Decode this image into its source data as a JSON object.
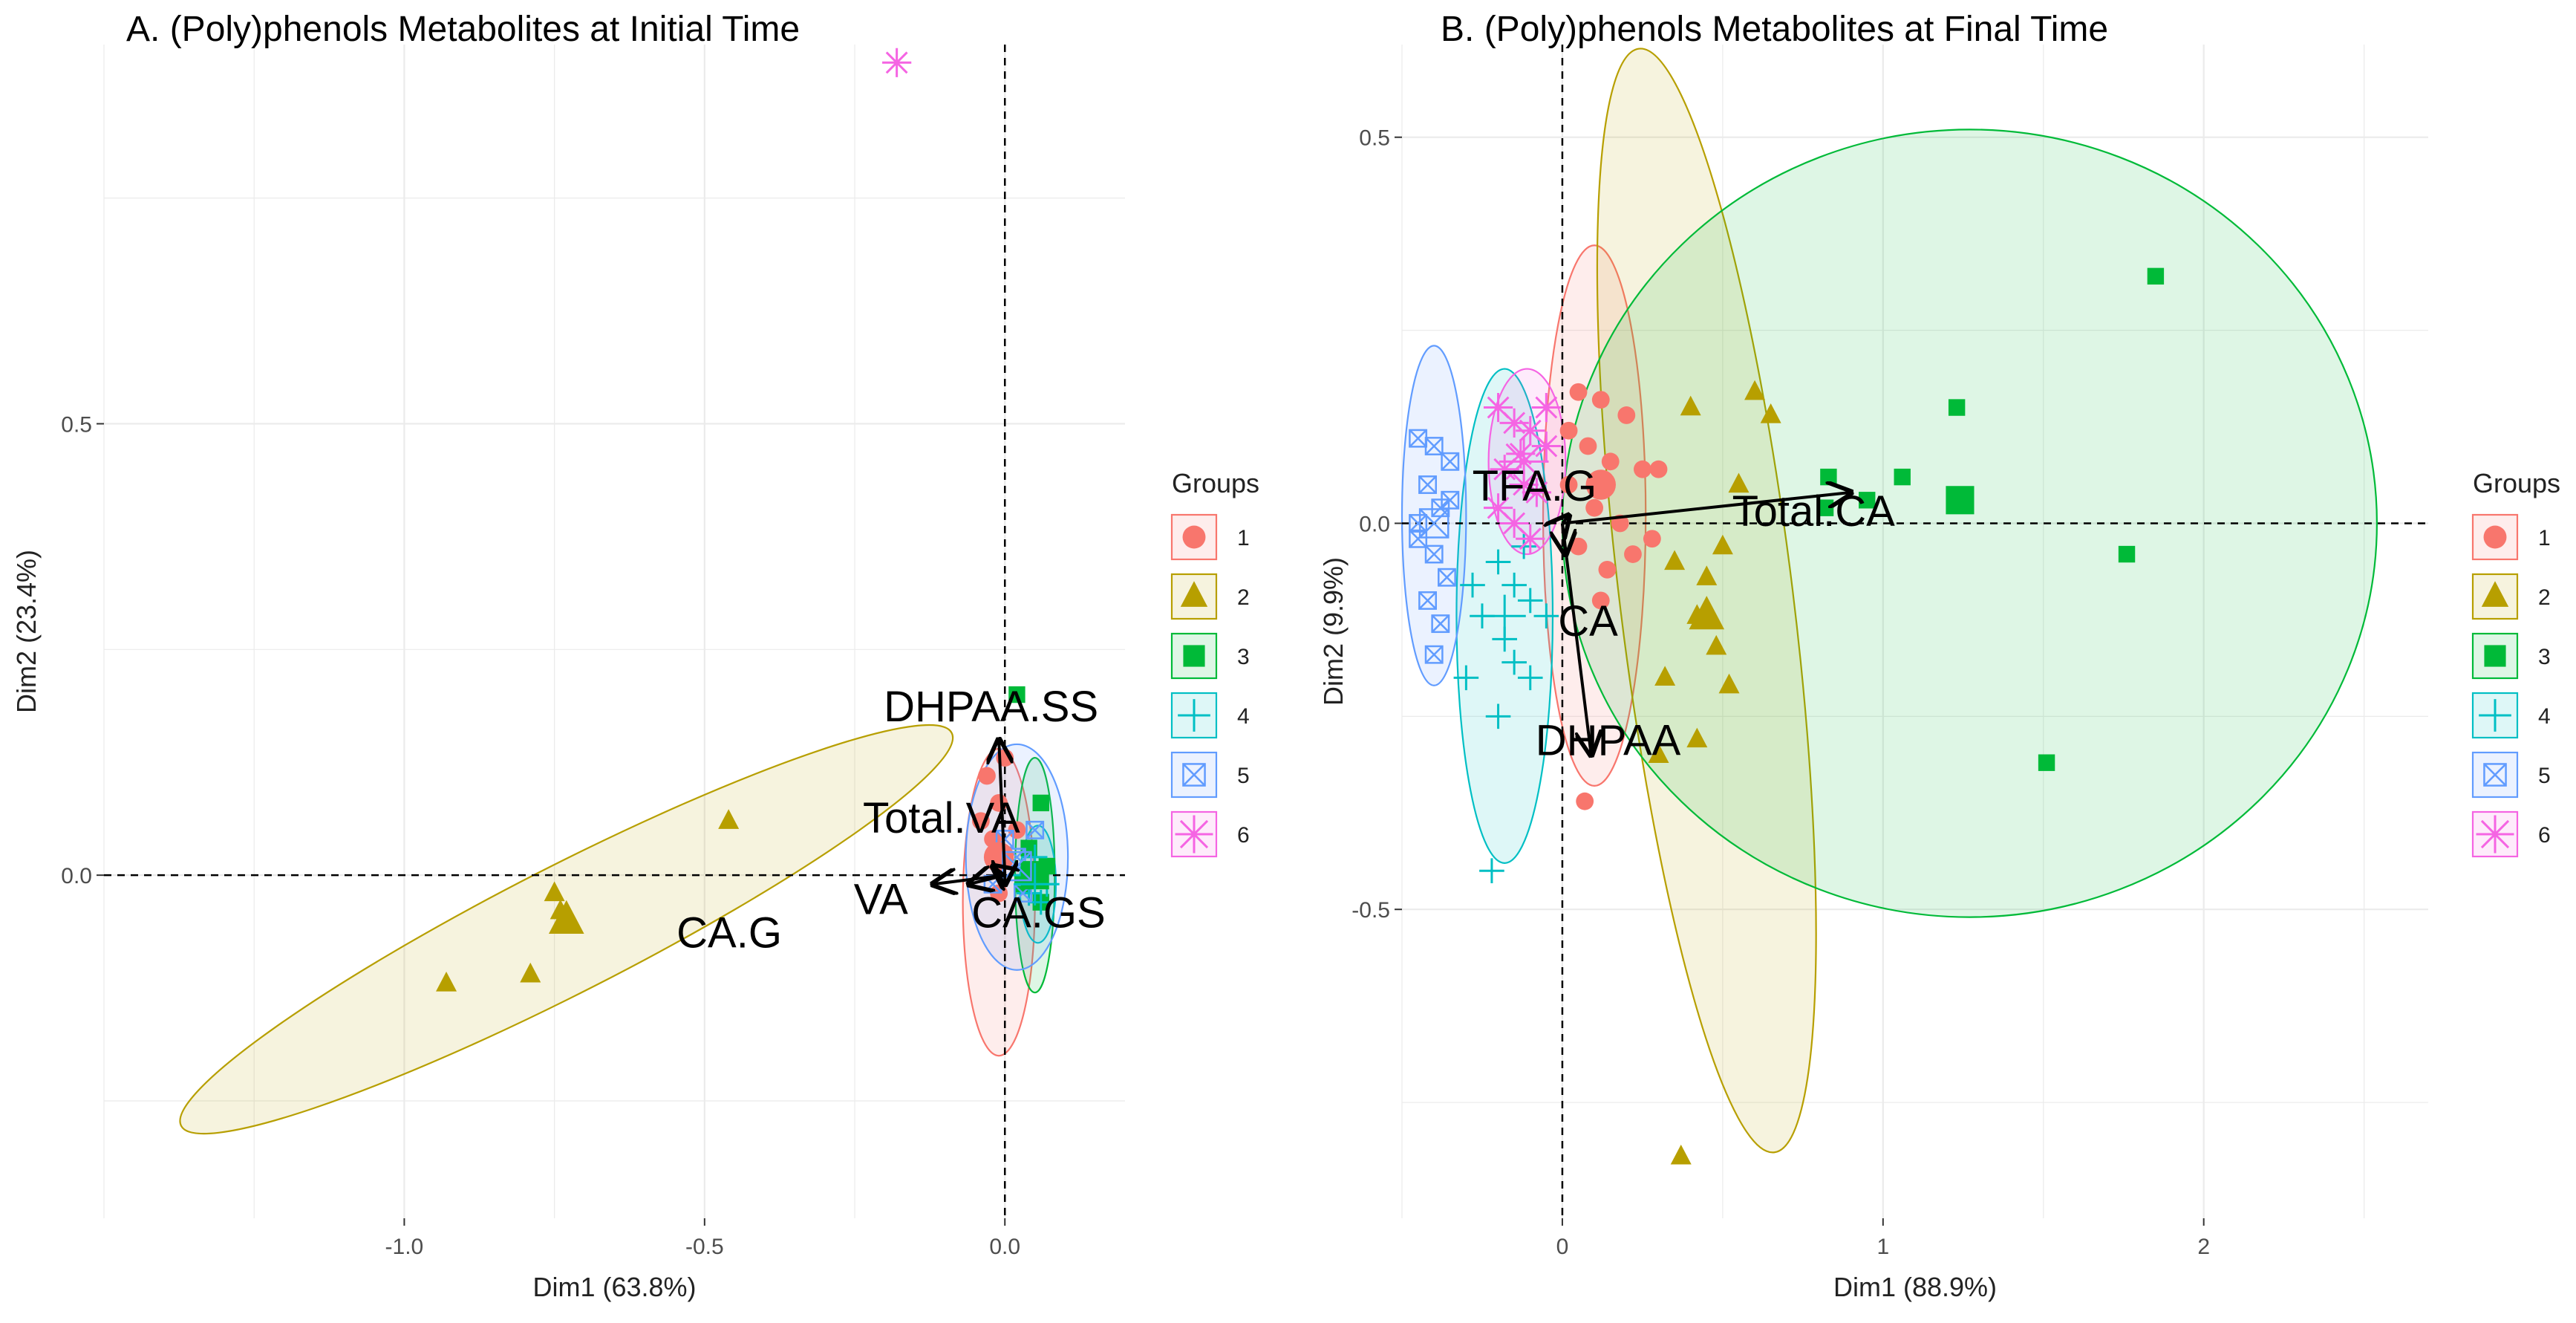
{
  "chart_data": [
    {
      "type": "scatter",
      "subtype": "pca-biplot",
      "title": "A. (Poly)phenols Metabolites at Initial Time",
      "xlabel": "Dim1 (63.8%)",
      "ylabel": "Dim2 (23.4%)",
      "xlim": [
        -1.5,
        0.2
      ],
      "ylim": [
        -0.38,
        0.92
      ],
      "xticks": [
        -1.0,
        -0.5,
        0.0
      ],
      "xtick_labels": [
        "-1.0",
        "-0.5",
        "0.0"
      ],
      "yticks": [
        0.0,
        0.5
      ],
      "ytick_labels": [
        "0.0",
        "0.5"
      ],
      "grid": true,
      "legend": {
        "title": "Groups",
        "position": "right",
        "entries": [
          "1",
          "2",
          "3",
          "4",
          "5",
          "6"
        ]
      },
      "colors": {
        "1": "#F8766D",
        "2": "#B79F00",
        "3": "#00BA38",
        "4": "#00BFC4",
        "5": "#619CFF",
        "6": "#F564E3"
      },
      "series": [
        {
          "name": "1",
          "marker": "circle",
          "points": [
            [
              -0.03,
              0.11
            ],
            [
              -0.01,
              0.08
            ],
            [
              -0.02,
              0.04
            ],
            [
              0.0,
              0.02
            ],
            [
              -0.01,
              -0.02
            ],
            [
              0.02,
              0.05
            ],
            [
              -0.04,
              0.06
            ],
            [
              0.0,
              0.13
            ]
          ]
        },
        {
          "name": "2",
          "marker": "triangle",
          "points": [
            [
              -0.46,
              0.06
            ],
            [
              -0.75,
              -0.02
            ],
            [
              -0.74,
              -0.04
            ],
            [
              -0.79,
              -0.11
            ],
            [
              -0.93,
              -0.12
            ],
            [
              -0.73,
              -0.05
            ]
          ]
        },
        {
          "name": "3",
          "marker": "square",
          "points": [
            [
              0.02,
              0.2
            ],
            [
              0.06,
              0.08
            ],
            [
              0.04,
              0.03
            ],
            [
              0.05,
              0.0
            ],
            [
              0.03,
              -0.01
            ],
            [
              0.06,
              -0.03
            ],
            [
              0.07,
              0.01
            ]
          ]
        },
        {
          "name": "4",
          "marker": "plus",
          "points": [
            [
              0.04,
              -0.02
            ],
            [
              0.05,
              0.02
            ],
            [
              0.06,
              -0.03
            ],
            [
              0.03,
              0.0
            ],
            [
              0.07,
              -0.01
            ]
          ]
        },
        {
          "name": "5",
          "marker": "square-x",
          "points": [
            [
              0.0,
              0.04
            ],
            [
              0.02,
              0.02
            ],
            [
              0.05,
              0.05
            ],
            [
              -0.02,
              -0.01
            ],
            [
              0.03,
              -0.02
            ]
          ]
        },
        {
          "name": "6",
          "marker": "star",
          "points": [
            [
              -0.18,
              0.9
            ]
          ]
        }
      ],
      "centroids": [
        {
          "group": "1",
          "point": [
            -0.01,
            0.02
          ]
        },
        {
          "group": "2",
          "point": [
            -0.73,
            -0.05
          ]
        },
        {
          "group": "3",
          "point": [
            0.05,
            0.0
          ]
        },
        {
          "group": "4",
          "point": [
            0.05,
            -0.01
          ]
        },
        {
          "group": "5",
          "point": [
            0.02,
            0.01
          ]
        }
      ],
      "ellipses": [
        {
          "group": "1",
          "cx": -0.01,
          "cy": -0.03,
          "rx": 0.06,
          "ry": 0.17,
          "angle_deg": 0
        },
        {
          "group": "2",
          "cx": -0.73,
          "cy": -0.06,
          "rx": 0.72,
          "ry": 0.07,
          "angle_deg": 27
        },
        {
          "group": "3",
          "cx": 0.05,
          "cy": 0.0,
          "rx": 0.033,
          "ry": 0.13,
          "angle_deg": 0
        },
        {
          "group": "4",
          "cx": 0.055,
          "cy": -0.01,
          "rx": 0.03,
          "ry": 0.065,
          "angle_deg": 0
        },
        {
          "group": "5",
          "cx": 0.02,
          "cy": 0.02,
          "rx": 0.085,
          "ry": 0.125,
          "angle_deg": 0
        }
      ],
      "vectors": [
        {
          "name": "DHPAA.SS",
          "x": -0.01,
          "y": 0.15
        },
        {
          "name": "Total.VA",
          "x": -0.02,
          "y": 0.01
        },
        {
          "name": "VA",
          "x": -0.06,
          "y": -0.01
        },
        {
          "name": "CA.G",
          "x": -0.12,
          "y": -0.01
        },
        {
          "name": "CA.GS",
          "x": 0.0,
          "y": -0.01
        }
      ]
    },
    {
      "type": "scatter",
      "subtype": "pca-biplot",
      "title": "B. (Poly)phenols Metabolites at Final Time",
      "xlabel": "Dim1 (88.9%)",
      "ylabel": "Dim2 (9.9%)",
      "xlim": [
        -0.5,
        2.7
      ],
      "ylim": [
        -0.9,
        0.62
      ],
      "xticks": [
        0,
        1,
        2
      ],
      "xtick_labels": [
        "0",
        "1",
        "2"
      ],
      "yticks": [
        -0.5,
        0.0,
        0.5
      ],
      "ytick_labels": [
        "-0.5",
        "0.0",
        "0.5"
      ],
      "grid": true,
      "legend": {
        "title": "Groups",
        "position": "right",
        "entries": [
          "1",
          "2",
          "3",
          "4",
          "5",
          "6"
        ]
      },
      "colors": {
        "1": "#F8766D",
        "2": "#B79F00",
        "3": "#00BA38",
        "4": "#00BFC4",
        "5": "#619CFF",
        "6": "#F564E3"
      },
      "series": [
        {
          "name": "1",
          "marker": "circle",
          "points": [
            [
              0.05,
              0.17
            ],
            [
              0.12,
              0.16
            ],
            [
              0.2,
              0.14
            ],
            [
              0.08,
              0.1
            ],
            [
              0.15,
              0.08
            ],
            [
              0.25,
              0.07
            ],
            [
              0.02,
              0.05
            ],
            [
              0.1,
              0.02
            ],
            [
              0.18,
              0.0
            ],
            [
              0.05,
              -0.03
            ],
            [
              0.14,
              -0.06
            ],
            [
              0.22,
              -0.04
            ],
            [
              0.12,
              -0.1
            ],
            [
              0.3,
              0.07
            ],
            [
              0.07,
              -0.36
            ],
            [
              0.02,
              0.12
            ],
            [
              0.28,
              -0.02
            ]
          ]
        },
        {
          "name": "2",
          "marker": "triangle",
          "points": [
            [
              0.4,
              0.15
            ],
            [
              0.6,
              0.17
            ],
            [
              0.65,
              0.14
            ],
            [
              0.55,
              0.05
            ],
            [
              0.5,
              -0.03
            ],
            [
              0.45,
              -0.07
            ],
            [
              0.42,
              -0.12
            ],
            [
              0.48,
              -0.16
            ],
            [
              0.32,
              -0.2
            ],
            [
              0.3,
              -0.3
            ],
            [
              0.42,
              -0.28
            ],
            [
              0.52,
              -0.21
            ],
            [
              0.35,
              -0.05
            ],
            [
              0.37,
              -0.82
            ],
            [
              0.45,
              -0.12
            ]
          ]
        },
        {
          "name": "3",
          "marker": "square",
          "points": [
            [
              1.85,
              0.32
            ],
            [
              1.23,
              0.15
            ],
            [
              1.06,
              0.06
            ],
            [
              0.83,
              0.06
            ],
            [
              0.82,
              0.02
            ],
            [
              1.76,
              -0.04
            ],
            [
              1.51,
              -0.31
            ],
            [
              0.95,
              0.03
            ],
            [
              1.24,
              0.03
            ]
          ]
        },
        {
          "name": "4",
          "marker": "plus",
          "points": [
            [
              -0.2,
              -0.05
            ],
            [
              -0.15,
              -0.08
            ],
            [
              -0.1,
              -0.1
            ],
            [
              -0.25,
              -0.12
            ],
            [
              -0.18,
              -0.15
            ],
            [
              -0.3,
              -0.2
            ],
            [
              -0.1,
              -0.2
            ],
            [
              -0.2,
              -0.25
            ],
            [
              -0.22,
              -0.45
            ],
            [
              -0.12,
              -0.03
            ],
            [
              -0.28,
              -0.08
            ],
            [
              -0.05,
              -0.12
            ],
            [
              -0.15,
              -0.18
            ]
          ]
        },
        {
          "name": "5",
          "marker": "square-x",
          "points": [
            [
              -0.45,
              0.11
            ],
            [
              -0.4,
              0.1
            ],
            [
              -0.35,
              0.08
            ],
            [
              -0.42,
              0.05
            ],
            [
              -0.38,
              0.02
            ],
            [
              -0.45,
              0.0
            ],
            [
              -0.4,
              -0.04
            ],
            [
              -0.36,
              -0.07
            ],
            [
              -0.42,
              -0.1
            ],
            [
              -0.38,
              -0.13
            ],
            [
              -0.4,
              -0.17
            ],
            [
              -0.35,
              0.03
            ],
            [
              -0.45,
              -0.02
            ]
          ]
        },
        {
          "name": "6",
          "marker": "star",
          "points": [
            [
              -0.2,
              0.15
            ],
            [
              -0.15,
              0.13
            ],
            [
              -0.1,
              0.12
            ],
            [
              -0.05,
              0.1
            ],
            [
              -0.18,
              0.07
            ],
            [
              -0.12,
              0.05
            ],
            [
              -0.08,
              0.04
            ],
            [
              -0.2,
              0.02
            ],
            [
              -0.15,
              0.0
            ],
            [
              -0.1,
              -0.02
            ],
            [
              -0.05,
              0.15
            ],
            [
              -0.13,
              0.09
            ]
          ]
        }
      ],
      "centroids": [
        {
          "group": "1",
          "point": [
            0.12,
            0.05
          ]
        },
        {
          "group": "2",
          "point": [
            0.45,
            -0.12
          ]
        },
        {
          "group": "3",
          "point": [
            1.24,
            0.03
          ]
        },
        {
          "group": "4",
          "point": [
            -0.18,
            -0.12
          ]
        },
        {
          "group": "5",
          "point": [
            -0.4,
            0.0
          ]
        },
        {
          "group": "6",
          "point": [
            -0.12,
            0.08
          ]
        }
      ],
      "ellipses": [
        {
          "group": "1",
          "cx": 0.1,
          "cy": 0.01,
          "rx": 0.16,
          "ry": 0.35,
          "angle_deg": 0
        },
        {
          "group": "2",
          "cx": 0.45,
          "cy": -0.1,
          "rx": 0.27,
          "ry": 0.72,
          "angle_deg": 7
        },
        {
          "group": "3",
          "cx": 1.27,
          "cy": 0.0,
          "rx": 1.27,
          "ry": 0.51,
          "angle_deg": 0
        },
        {
          "group": "4",
          "cx": -0.18,
          "cy": -0.12,
          "rx": 0.15,
          "ry": 0.32,
          "angle_deg": 0
        },
        {
          "group": "5",
          "cx": -0.4,
          "cy": 0.01,
          "rx": 0.1,
          "ry": 0.22,
          "angle_deg": 0
        },
        {
          "group": "6",
          "cx": -0.11,
          "cy": 0.08,
          "rx": 0.12,
          "ry": 0.12,
          "angle_deg": 0
        }
      ],
      "vectors": [
        {
          "name": "TFA.G",
          "x": 0.02,
          "y": 0.01
        },
        {
          "name": "Total.CA",
          "x": 0.9,
          "y": 0.04
        },
        {
          "name": "CA",
          "x": 0.01,
          "y": -0.04
        },
        {
          "name": "DHPAA",
          "x": 0.09,
          "y": -0.3
        }
      ]
    }
  ]
}
